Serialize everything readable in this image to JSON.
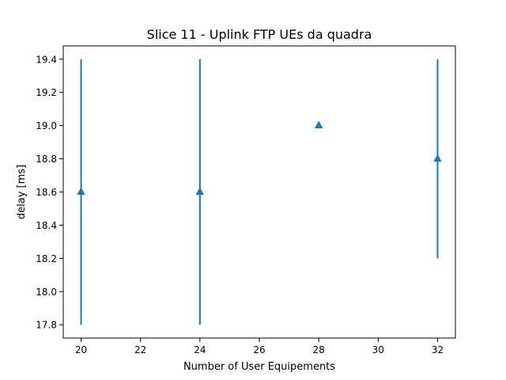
{
  "chart_data": {
    "type": "scatter",
    "title": "Slice 11 - Uplink FTP UEs da quadra",
    "xlabel": "Number of User Equipements",
    "ylabel": "delay [ms]",
    "xlim": [
      19.4,
      32.6
    ],
    "ylim": [
      17.72,
      19.48
    ],
    "xticks": [
      20,
      22,
      24,
      26,
      28,
      30,
      32
    ],
    "yticks": [
      17.8,
      18.0,
      18.2,
      18.4,
      18.6,
      18.8,
      19.0,
      19.2,
      19.4
    ],
    "grid": false,
    "marker": "triangle-up",
    "color": "#1f77b4",
    "series": [
      {
        "x": [
          20,
          24,
          28,
          32
        ],
        "values": [
          18.6,
          18.6,
          19.0,
          18.8
        ],
        "error_low": [
          17.8,
          17.8,
          19.0,
          18.2
        ],
        "error_high": [
          19.4,
          19.4,
          19.0,
          19.4
        ]
      }
    ]
  }
}
